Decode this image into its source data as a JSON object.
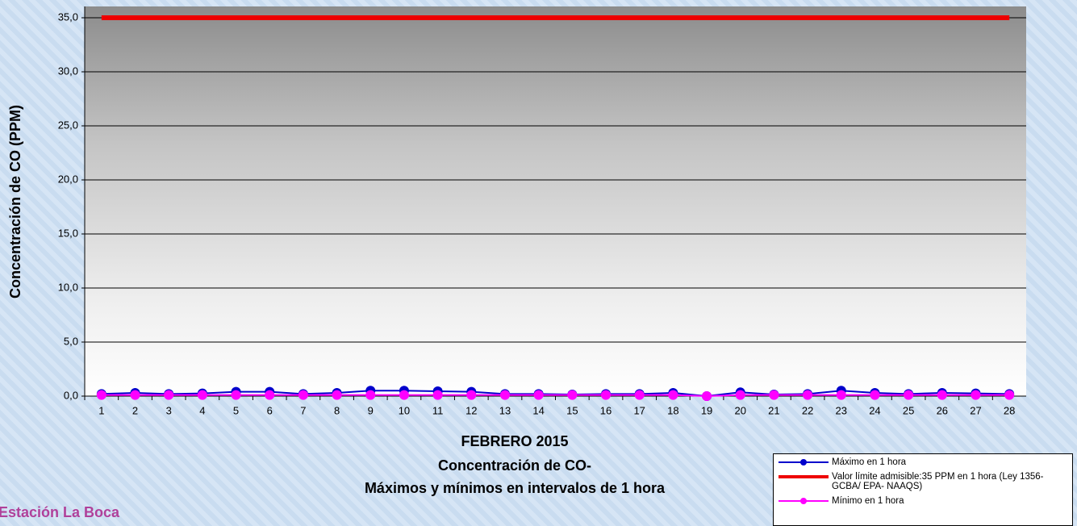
{
  "chart_data": {
    "type": "line",
    "title": "Concentración de CO-",
    "subtitle": "Máximos y mínimos en intervalos de 1 hora",
    "x_label": "FEBRERO 2015",
    "y_label": "Concentración de CO (PPM)",
    "station": "Estación La Boca",
    "categories": [
      "1",
      "2",
      "3",
      "4",
      "5",
      "6",
      "7",
      "8",
      "9",
      "10",
      "11",
      "12",
      "13",
      "14",
      "15",
      "16",
      "17",
      "18",
      "19",
      "20",
      "21",
      "22",
      "23",
      "24",
      "25",
      "26",
      "27",
      "28"
    ],
    "series": [
      {
        "name": "Máximo en 1 hora",
        "color": "#0000cc",
        "marker": true,
        "values": [
          0.2,
          0.3,
          0.2,
          0.25,
          0.4,
          0.4,
          0.2,
          0.3,
          0.5,
          0.5,
          0.45,
          0.4,
          0.2,
          0.2,
          0.15,
          0.2,
          0.2,
          0.3,
          0.0,
          0.35,
          0.15,
          0.2,
          0.5,
          0.3,
          0.2,
          0.3,
          0.25,
          0.2
        ]
      },
      {
        "name": "Valor límite admisible:35 PPM en 1 hora (Ley 1356-GCBA/ EPA- NAAQS)",
        "color": "#ee0000",
        "marker": false,
        "values": [
          35,
          35,
          35,
          35,
          35,
          35,
          35,
          35,
          35,
          35,
          35,
          35,
          35,
          35,
          35,
          35,
          35,
          35,
          35,
          35,
          35,
          35,
          35,
          35,
          35,
          35,
          35,
          35
        ]
      },
      {
        "name": "Mínimo en 1 hora",
        "color": "#ff00ff",
        "marker": true,
        "values": [
          0.1,
          0.1,
          0.1,
          0.1,
          0.1,
          0.1,
          0.1,
          0.1,
          0.1,
          0.1,
          0.1,
          0.1,
          0.1,
          0.1,
          0.1,
          0.1,
          0.1,
          0.1,
          0.0,
          0.1,
          0.1,
          0.1,
          0.1,
          0.1,
          0.1,
          0.1,
          0.1,
          0.1
        ]
      }
    ],
    "ylim": [
      0,
      35
    ],
    "yticks": [
      {
        "value": 0,
        "label": "0,0"
      },
      {
        "value": 5,
        "label": "5,0"
      },
      {
        "value": 10,
        "label": "10,0"
      },
      {
        "value": 15,
        "label": "15,0"
      },
      {
        "value": 20,
        "label": "20,0"
      },
      {
        "value": 25,
        "label": "25,0"
      },
      {
        "value": 30,
        "label": "30,0"
      },
      {
        "value": 35,
        "label": "35,0"
      }
    ],
    "grid": true
  }
}
